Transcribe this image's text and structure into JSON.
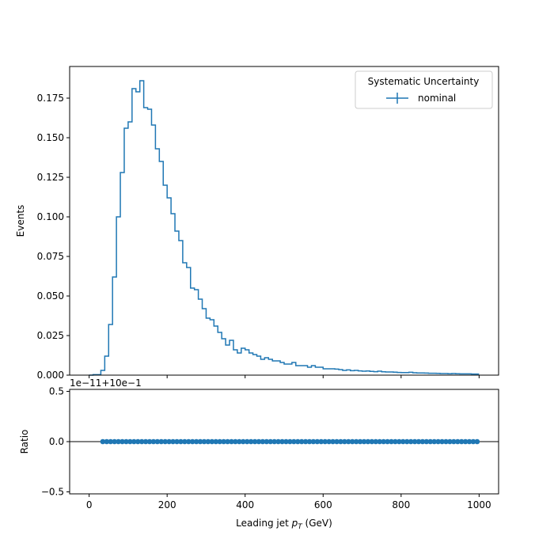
{
  "chart_data": [
    {
      "type": "line",
      "ylabel": "Events",
      "xlim": [
        -50,
        1050
      ],
      "ylim": [
        0,
        0.195
      ],
      "yticks": [
        "0.000",
        "0.025",
        "0.050",
        "0.075",
        "0.100",
        "0.125",
        "0.150",
        "0.175"
      ],
      "ytick_values": [
        0,
        0.025,
        0.05,
        0.075,
        0.1,
        0.125,
        0.15,
        0.175
      ],
      "legend": {
        "title": "Systematic Uncertainty",
        "placement": "top-right",
        "entries": [
          "nominal"
        ]
      },
      "series": [
        {
          "name": "nominal",
          "color": "#1f77b4",
          "bin_width": 10,
          "bin_edges_start": 0,
          "values": [
            0.0,
            0.0003,
            0.0003,
            0.003,
            0.012,
            0.032,
            0.062,
            0.1,
            0.128,
            0.156,
            0.16,
            0.181,
            0.179,
            0.186,
            0.169,
            0.168,
            0.158,
            0.143,
            0.135,
            0.12,
            0.112,
            0.102,
            0.091,
            0.085,
            0.071,
            0.068,
            0.055,
            0.054,
            0.048,
            0.042,
            0.036,
            0.035,
            0.031,
            0.027,
            0.023,
            0.019,
            0.022,
            0.016,
            0.014,
            0.017,
            0.016,
            0.014,
            0.013,
            0.012,
            0.01,
            0.011,
            0.01,
            0.009,
            0.009,
            0.008,
            0.007,
            0.007,
            0.008,
            0.006,
            0.006,
            0.006,
            0.005,
            0.006,
            0.005,
            0.005,
            0.004,
            0.004,
            0.004,
            0.0038,
            0.0035,
            0.003,
            0.0033,
            0.0028,
            0.003,
            0.0027,
            0.0025,
            0.0026,
            0.0024,
            0.0022,
            0.0025,
            0.0021,
            0.002,
            0.002,
            0.0019,
            0.0017,
            0.0016,
            0.0016,
            0.0018,
            0.0015,
            0.0014,
            0.0014,
            0.0013,
            0.0012,
            0.0012,
            0.0011,
            0.001,
            0.001,
            0.0009,
            0.001,
            0.0009,
            0.0008,
            0.0008,
            0.0008,
            0.0007,
            0.0007
          ]
        }
      ]
    },
    {
      "type": "scatter",
      "xlabel": "Leading jet  p_T (GeV)",
      "xlabel_parts": {
        "before": "Leading jet  ",
        "var": "p",
        "sub": "T",
        "after": " (GeV)"
      },
      "ylabel": "Ratio",
      "offset_label": "1e−11+10e−1",
      "xlim": [
        -50,
        1050
      ],
      "ylim": [
        -0.52,
        0.52
      ],
      "xticks": [
        "0",
        "200",
        "400",
        "600",
        "800",
        "1000"
      ],
      "xtick_values": [
        0,
        200,
        400,
        600,
        800,
        1000
      ],
      "yticks": [
        "−0.5",
        "0.0",
        "0.5"
      ],
      "ytick_values": [
        -0.5,
        0,
        0.5
      ],
      "reference_line": 0,
      "series": [
        {
          "color": "#1f77b4",
          "x_start": 35,
          "x_step": 10,
          "count": 97,
          "value": 0
        }
      ]
    }
  ]
}
